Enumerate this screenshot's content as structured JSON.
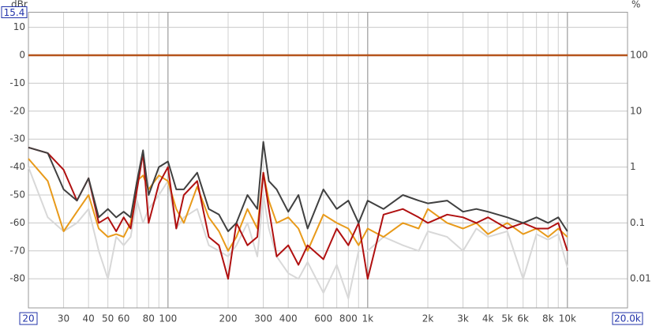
{
  "chart_data": {
    "type": "line",
    "ylabel": "dBr",
    "y2label": "%",
    "xscale": "log",
    "y2scale": "log",
    "xlim": [
      20,
      20000
    ],
    "ylim": [
      -90.4,
      15.4
    ],
    "y2lim": [
      0.00302,
      589
    ],
    "xticks": [
      20,
      30,
      40,
      50,
      60,
      80,
      100,
      200,
      300,
      400,
      600,
      800,
      {
        "value": 1000,
        "label": "1k"
      },
      {
        "value": 2000,
        "label": "2k"
      },
      {
        "value": 3000,
        "label": "3k"
      },
      {
        "value": 4000,
        "label": "4k"
      },
      {
        "value": 5000,
        "label": "5k"
      },
      {
        "value": 6000,
        "label": "6k"
      },
      {
        "value": 8000,
        "label": "8k"
      },
      {
        "value": 10000,
        "label": "10k"
      },
      {
        "value": 20000,
        "label": "20.0k"
      }
    ],
    "xgrid": [
      30,
      40,
      50,
      60,
      70,
      80,
      90,
      100,
      200,
      300,
      400,
      500,
      600,
      700,
      800,
      900,
      1000,
      2000,
      3000,
      4000,
      5000,
      6000,
      7000,
      8000,
      9000,
      10000
    ],
    "yticks": [
      15.4,
      10,
      0,
      -10,
      -20,
      -30,
      -40,
      -50,
      -60,
      -70,
      -80
    ],
    "y2ticks": [
      100,
      10,
      1,
      0.1,
      0.01
    ],
    "grid": true,
    "ref_line": {
      "value": 0,
      "color": "#b5541c"
    },
    "x": [
      20,
      25,
      30,
      35,
      40,
      45,
      50,
      55,
      60,
      65,
      70,
      75,
      80,
      90,
      100,
      110,
      120,
      140,
      160,
      180,
      200,
      220,
      250,
      280,
      300,
      320,
      350,
      400,
      450,
      500,
      600,
      700,
      800,
      900,
      1000,
      1200,
      1500,
      1800,
      2000,
      2500,
      3000,
      3500,
      4000,
      5000,
      6000,
      7000,
      8000,
      9000,
      10000
    ],
    "series": [
      {
        "color": "#d8d8d8",
        "values": [
          -40,
          -58,
          -63,
          -60,
          -55,
          -70,
          -80,
          -65,
          -68,
          -65,
          -52,
          -60,
          -55,
          -50,
          -45,
          -62,
          -58,
          -55,
          -68,
          -70,
          -72,
          -68,
          -60,
          -72,
          -50,
          -62,
          -72,
          -78,
          -80,
          -74,
          -85,
          -75,
          -87,
          -70,
          -70,
          -65,
          -68,
          -70,
          -63,
          -65,
          -70,
          -62,
          -65,
          -63,
          -80,
          -64,
          -66,
          -64,
          -76
        ]
      },
      {
        "color": "#e89a1a",
        "values": [
          -37,
          -45,
          -63,
          -56,
          -50,
          -62,
          -65,
          -64,
          -65,
          -60,
          -45,
          -43,
          -48,
          -43,
          -45,
          -55,
          -60,
          -47,
          -58,
          -63,
          -70,
          -65,
          -55,
          -62,
          -42,
          -52,
          -60,
          -58,
          -62,
          -70,
          -57,
          -60,
          -62,
          -68,
          -62,
          -65,
          -60,
          -62,
          -55,
          -60,
          -62,
          -60,
          -64,
          -60,
          -64,
          -62,
          -65,
          -62,
          -65
        ]
      },
      {
        "color": "#b01010",
        "values": [
          -33,
          -35,
          -41,
          -52,
          -44,
          -60,
          -58,
          -63,
          -58,
          -62,
          -48,
          -35,
          -60,
          -46,
          -40,
          -62,
          -50,
          -45,
          -65,
          -68,
          -80,
          -60,
          -68,
          -65,
          -42,
          -55,
          -72,
          -68,
          -75,
          -68,
          -73,
          -62,
          -68,
          -60,
          -80,
          -57,
          -55,
          -58,
          -60,
          -57,
          -58,
          -60,
          -58,
          -62,
          -60,
          -62,
          -62,
          -60,
          -70
        ]
      },
      {
        "color": "#404040",
        "values": [
          -33,
          -35,
          -48,
          -52,
          -44,
          -58,
          -55,
          -58,
          -56,
          -58,
          -45,
          -34,
          -50,
          -40,
          -38,
          -48,
          -48,
          -42,
          -55,
          -57,
          -63,
          -60,
          -50,
          -55,
          -31,
          -45,
          -48,
          -56,
          -50,
          -62,
          -48,
          -55,
          -52,
          -60,
          -52,
          -55,
          -50,
          -52,
          -53,
          -52,
          -56,
          -55,
          -56,
          -58,
          -60,
          -58,
          -60,
          -58,
          -63
        ]
      }
    ]
  }
}
